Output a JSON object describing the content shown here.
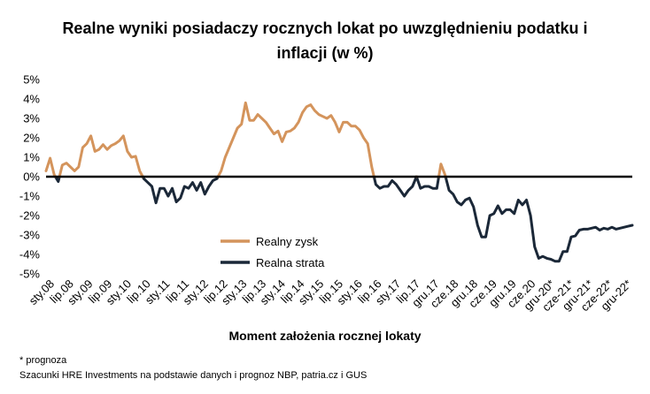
{
  "chart_data": {
    "type": "line",
    "title_line1": "Realne wyniki posiadaczy rocznych lokat po uwzględnieniu podatku i",
    "title_line2": "inflacji (w %)",
    "xlabel": "Moment założenia rocznej lokaty",
    "ylabel": "",
    "ylim": [
      -5,
      5
    ],
    "yticks": [
      "5%",
      "4%",
      "3%",
      "2%",
      "1%",
      "0%",
      "-1%",
      "-2%",
      "-3%",
      "-4%",
      "-5%"
    ],
    "ytick_values": [
      5,
      4,
      3,
      2,
      1,
      0,
      -1,
      -2,
      -3,
      -4,
      -5
    ],
    "xticks": [
      "sty.08",
      "lip.08",
      "sty.09",
      "lip.09",
      "sty.10",
      "lip.10",
      "sty.11",
      "lip.11",
      "sty.12",
      "lip.12",
      "sty.13",
      "lip.13",
      "sty.14",
      "lip.14",
      "sty.15",
      "lip.15",
      "sty.16",
      "lip.16",
      "sty.17",
      "lip.17",
      "gru.17",
      "cze.18",
      "gru.18",
      "cze.19",
      "gru.19",
      "cze.20",
      "gru-20*",
      "cze-21*",
      "gru-21*",
      "cze-22*",
      "gru-22*"
    ],
    "legend": [
      "Realny zysk",
      "Realna strata"
    ],
    "legend_position": "lower-left-center",
    "colors": {
      "gain": "#d4945c",
      "loss": "#1b2838",
      "zero_line": "#000000"
    },
    "grid": false,
    "monthly_values": [
      0.3,
      0.95,
      0.1,
      -0.25,
      0.6,
      0.7,
      0.5,
      0.3,
      0.5,
      1.5,
      1.7,
      2.1,
      1.3,
      1.4,
      1.65,
      1.4,
      1.6,
      1.7,
      1.85,
      2.1,
      1.3,
      1.0,
      1.05,
      0.3,
      -0.1,
      -0.3,
      -0.5,
      -1.35,
      -0.6,
      -0.6,
      -1.0,
      -0.6,
      -1.3,
      -1.1,
      -0.5,
      -0.6,
      -0.3,
      -0.7,
      -0.3,
      -0.9,
      -0.5,
      -0.2,
      -0.1,
      0.3,
      1.0,
      1.5,
      2.0,
      2.5,
      2.7,
      3.8,
      2.9,
      2.9,
      3.2,
      3.0,
      2.8,
      2.5,
      2.2,
      2.35,
      1.8,
      2.3,
      2.35,
      2.5,
      2.8,
      3.3,
      3.6,
      3.7,
      3.4,
      3.2,
      3.1,
      3.0,
      3.15,
      2.8,
      2.3,
      2.8,
      2.8,
      2.6,
      2.6,
      2.4,
      2.0,
      1.7,
      0.5,
      -0.4,
      -0.6,
      -0.5,
      -0.5,
      -0.2,
      -0.4,
      -0.7,
      -1.0,
      -0.7,
      -0.5,
      0.0,
      -0.6,
      -0.5,
      -0.5,
      -0.6,
      -0.6,
      0.65,
      0.1,
      -0.7,
      -0.9,
      -1.3,
      -1.45,
      -1.2,
      -1.1,
      -1.55,
      -2.5,
      -3.1,
      -3.1,
      -2.0,
      -1.9,
      -1.5,
      -1.9,
      -1.7,
      -1.7,
      -1.9,
      -1.2,
      -1.45,
      -1.2,
      -2.0,
      -3.6,
      -4.2,
      -4.1,
      -4.2,
      -4.25,
      -4.35,
      -4.35,
      -3.85,
      -3.85,
      -3.1,
      -3.05,
      -2.75,
      -2.7,
      -2.7,
      -2.65,
      -2.6,
      -2.75,
      -2.65,
      -2.7,
      -2.6,
      -2.7,
      -2.65,
      -2.6,
      -2.55,
      -2.5
    ]
  },
  "footnote": "* prognoza",
  "source": "Szacunki HRE Investments na podstawie danych i prognoz NBP,  patria.cz  i GUS"
}
